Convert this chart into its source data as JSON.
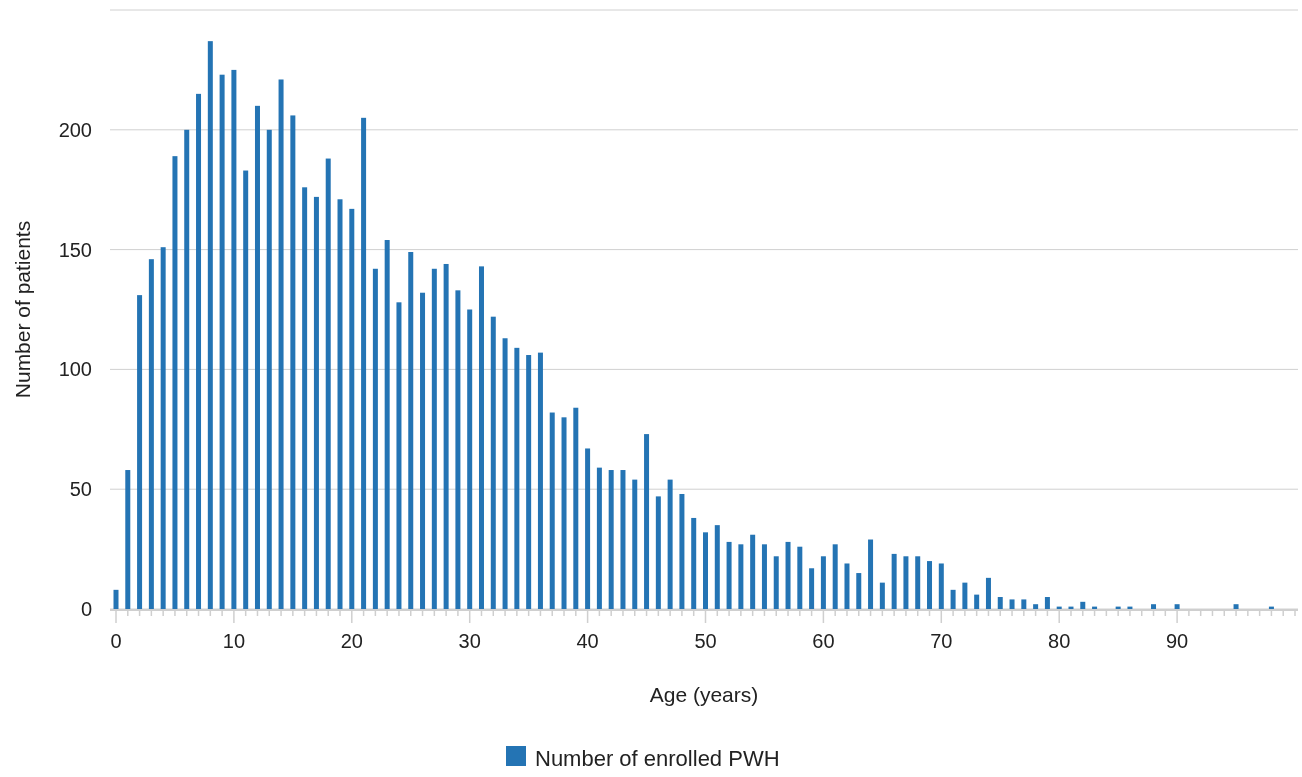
{
  "chart_data": {
    "type": "bar",
    "xlabel": "Age (years)",
    "ylabel": "Number of patients",
    "categories": [
      "0",
      null,
      null,
      null,
      null,
      null,
      null,
      null,
      null,
      null,
      "10",
      null,
      null,
      null,
      null,
      null,
      null,
      null,
      null,
      null,
      "20",
      null,
      null,
      null,
      null,
      null,
      null,
      null,
      null,
      null,
      "30",
      null,
      null,
      null,
      null,
      null,
      null,
      null,
      null,
      null,
      "40",
      null,
      null,
      null,
      null,
      null,
      null,
      null,
      null,
      null,
      "50",
      null,
      null,
      null,
      null,
      null,
      null,
      null,
      null,
      null,
      "60",
      null,
      null,
      null,
      null,
      null,
      null,
      null,
      null,
      null,
      "70",
      null,
      null,
      null,
      null,
      null,
      null,
      null,
      null,
      null,
      "80",
      null,
      null,
      null,
      null,
      null,
      null,
      null,
      null,
      null,
      "90",
      null,
      null,
      null,
      null,
      null,
      null,
      null,
      null,
      null,
      null
    ],
    "series": [
      {
        "name": "Number of enrolled PWH",
        "color": "#2474b4",
        "values": [
          8,
          58,
          131,
          146,
          151,
          189,
          200,
          215,
          237,
          223,
          225,
          183,
          210,
          200,
          221,
          206,
          176,
          172,
          188,
          171,
          167,
          205,
          142,
          154,
          128,
          149,
          132,
          142,
          144,
          133,
          125,
          143,
          122,
          113,
          109,
          106,
          107,
          82,
          80,
          84,
          67,
          59,
          58,
          58,
          54,
          73,
          47,
          54,
          48,
          38,
          32,
          35,
          28,
          27,
          31,
          27,
          22,
          28,
          26,
          17,
          22,
          27,
          19,
          15,
          29,
          11,
          23,
          22,
          22,
          20,
          19,
          8,
          11,
          6,
          13,
          5,
          4,
          4,
          2,
          5,
          1,
          1,
          3,
          1,
          0,
          1,
          1,
          0,
          2,
          0,
          2,
          0,
          0,
          0,
          0,
          2,
          0,
          0,
          1,
          0,
          0
        ]
      }
    ],
    "ylim": [
      0,
      250
    ],
    "yticks": [
      0,
      50,
      100,
      150,
      200,
      {
        "value": 250,
        "label": null
      }
    ],
    "grid": "y",
    "legend": "bottom"
  }
}
